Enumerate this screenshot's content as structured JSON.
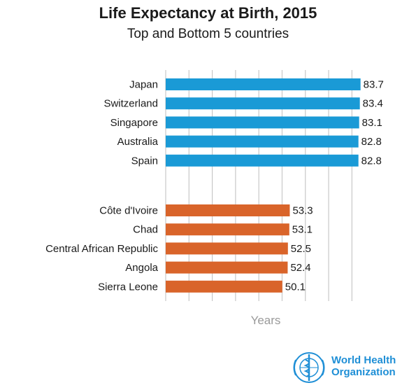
{
  "chart_data": {
    "type": "bar",
    "orientation": "horizontal",
    "title": "Life Expectancy at Birth, 2015",
    "subtitle": "Top and Bottom 5 countries",
    "xlabel": "Years",
    "ylabel": "",
    "xlim": [
      0,
      85
    ],
    "grid": true,
    "groups": [
      {
        "color": "#1a9ad6",
        "categories": [
          "Japan",
          "Switzerland",
          "Singapore",
          "Australia",
          "Spain"
        ],
        "values": [
          83.7,
          83.4,
          83.1,
          82.8,
          82.8
        ]
      },
      {
        "color": "#d9642a",
        "categories": [
          "Côte d'Ivoire",
          "Chad",
          "Central African Republic",
          "Angola",
          "Sierra Leone"
        ],
        "values": [
          53.3,
          53.1,
          52.5,
          52.4,
          50.1
        ]
      }
    ]
  },
  "logo": {
    "line1": "World Health",
    "line2": "Organization",
    "color": "#1f8fd6"
  }
}
